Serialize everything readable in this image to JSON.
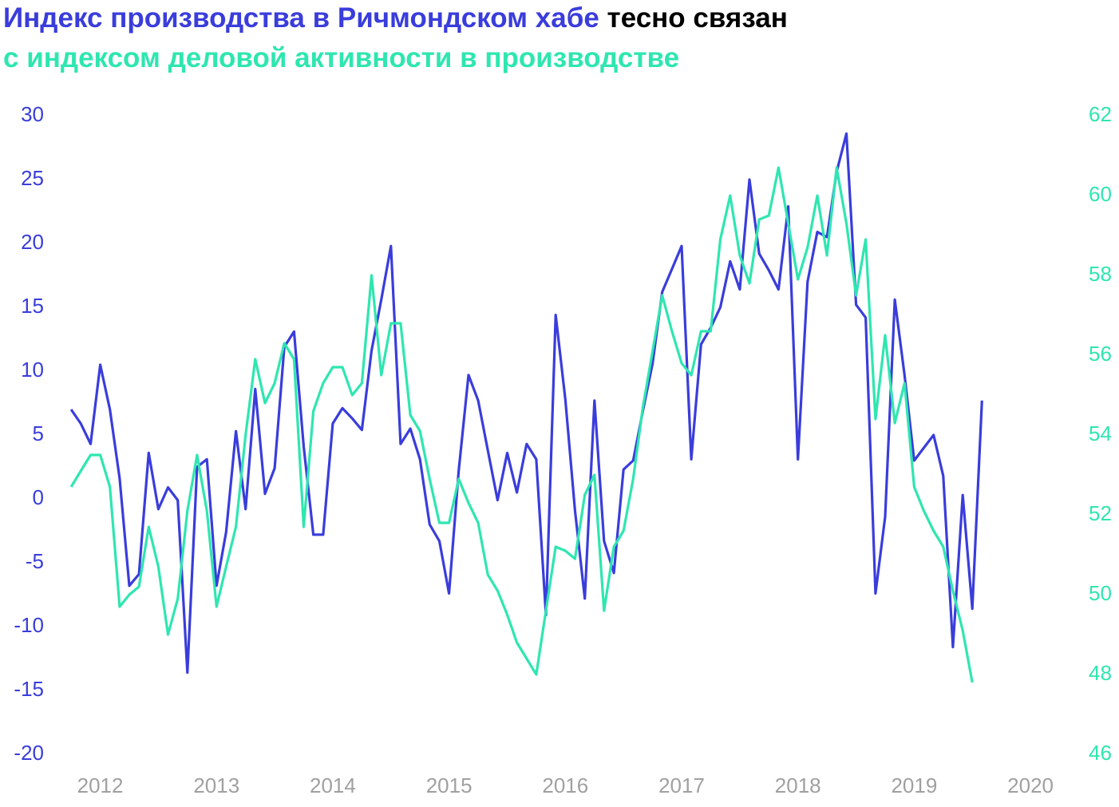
{
  "chart_data": {
    "type": "line",
    "title_parts": [
      {
        "text": "Индекс производства в Ричмондском хабе",
        "color": "#3a3ddb"
      },
      {
        "text": "тесно связан",
        "color": "#000000"
      },
      {
        "text": "с индексом деловой активности в производстве",
        "color": "#2ee6b0"
      }
    ],
    "x": [
      2011.75,
      2011.833,
      2011.917,
      2012,
      2012.083,
      2012.167,
      2012.25,
      2012.333,
      2012.417,
      2012.5,
      2012.583,
      2012.667,
      2012.75,
      2012.833,
      2012.917,
      2013,
      2013.083,
      2013.167,
      2013.25,
      2013.333,
      2013.417,
      2013.5,
      2013.583,
      2013.667,
      2013.75,
      2013.833,
      2013.917,
      2014,
      2014.083,
      2014.167,
      2014.25,
      2014.333,
      2014.417,
      2014.5,
      2014.583,
      2014.667,
      2014.75,
      2014.833,
      2014.917,
      2015,
      2015.083,
      2015.167,
      2015.25,
      2015.333,
      2015.417,
      2015.5,
      2015.583,
      2015.667,
      2015.75,
      2015.833,
      2015.917,
      2016,
      2016.083,
      2016.167,
      2016.25,
      2016.333,
      2016.417,
      2016.5,
      2016.583,
      2016.667,
      2016.75,
      2016.833,
      2016.917,
      2017,
      2017.083,
      2017.167,
      2017.25,
      2017.333,
      2017.417,
      2017.5,
      2017.583,
      2017.667,
      2017.75,
      2017.833,
      2017.917,
      2018,
      2018.083,
      2018.167,
      2018.25,
      2018.333,
      2018.417,
      2018.5,
      2018.583,
      2018.667,
      2018.75,
      2018.833,
      2018.917,
      2019,
      2019.083,
      2019.167,
      2019.25,
      2019.333,
      2019.417,
      2019.5,
      2019.583
    ],
    "series": [
      {
        "color": "#3a3ddb",
        "values": [
          7.0,
          5.9,
          4.3,
          10.5,
          7.0,
          1.6,
          -6.8,
          -5.9,
          3.6,
          -0.8,
          0.9,
          -0.1,
          -13.6,
          2.5,
          3.1,
          -6.8,
          -2.6,
          5.3,
          -0.8,
          8.6,
          0.4,
          2.4,
          11.9,
          13.1,
          4.1,
          -2.8,
          -2.8,
          5.9,
          7.1,
          6.3,
          5.4,
          11.6,
          15.6,
          19.8,
          4.3,
          5.5,
          3.1,
          -2.0,
          -3.3,
          -7.4,
          2.2,
          9.7,
          7.7,
          3.8,
          -0.1,
          3.6,
          0.5,
          4.3,
          3.1,
          -9.1,
          14.4,
          7.8,
          -0.9,
          -7.8,
          7.7,
          -3.3,
          -5.8,
          2.3,
          3.0,
          6.9,
          10.6,
          16.2,
          18.0,
          19.8,
          3.1,
          12.1,
          13.4,
          15.0,
          18.6,
          16.4,
          25.0,
          19.2,
          17.9,
          16.4,
          22.9,
          3.1,
          17.0,
          20.9,
          20.5,
          25.6,
          28.6,
          15.2,
          14.2,
          -7.4,
          -1.4,
          15.6,
          9.7,
          3.0,
          4.0,
          5.0,
          1.8,
          -11.6,
          0.3,
          -8.6,
          7.7
        ]
      },
      {
        "color": "#2ee6b0",
        "axis": "y2",
        "values": [
          52.7,
          53.1,
          53.5,
          53.5,
          52.7,
          49.7,
          50.0,
          50.2,
          51.7,
          50.7,
          49.0,
          49.9,
          52.1,
          53.5,
          52.1,
          49.7,
          50.7,
          51.7,
          54.0,
          55.9,
          54.8,
          55.3,
          56.3,
          55.9,
          51.7,
          54.6,
          55.3,
          55.7,
          55.7,
          55.0,
          55.3,
          58.0,
          55.5,
          56.8,
          56.8,
          54.5,
          54.1,
          52.9,
          51.8,
          51.8,
          52.9,
          52.3,
          51.8,
          50.5,
          50.1,
          49.5,
          48.8,
          48.4,
          48.0,
          49.6,
          51.2,
          51.1,
          50.9,
          52.5,
          53.0,
          49.6,
          51.2,
          51.6,
          52.9,
          54.7,
          56.1,
          57.5,
          56.6,
          55.8,
          55.5,
          56.6,
          56.6,
          58.9,
          60.0,
          58.5,
          57.8,
          59.4,
          59.5,
          60.7,
          59.3,
          57.9,
          58.7,
          60.0,
          58.5,
          60.7,
          59.3,
          57.5,
          58.9,
          54.4,
          56.5,
          54.3,
          55.3,
          52.7,
          52.1,
          51.6,
          51.2,
          50.1,
          49.1,
          47.8,
          null
        ]
      }
    ],
    "xlim": [
      2011.55,
      2020.37
    ],
    "xticks": [
      2012,
      2013,
      2014,
      2015,
      2016,
      2017,
      2018,
      2019,
      2020
    ],
    "ylim": [
      -20,
      30
    ],
    "yticks": [
      -20,
      -15,
      -10,
      -5,
      0,
      5,
      10,
      15,
      20,
      25,
      30
    ],
    "y2lim": [
      46,
      62
    ],
    "y2ticks": [
      46,
      48,
      50,
      52,
      54,
      56,
      58,
      60,
      62
    ]
  }
}
